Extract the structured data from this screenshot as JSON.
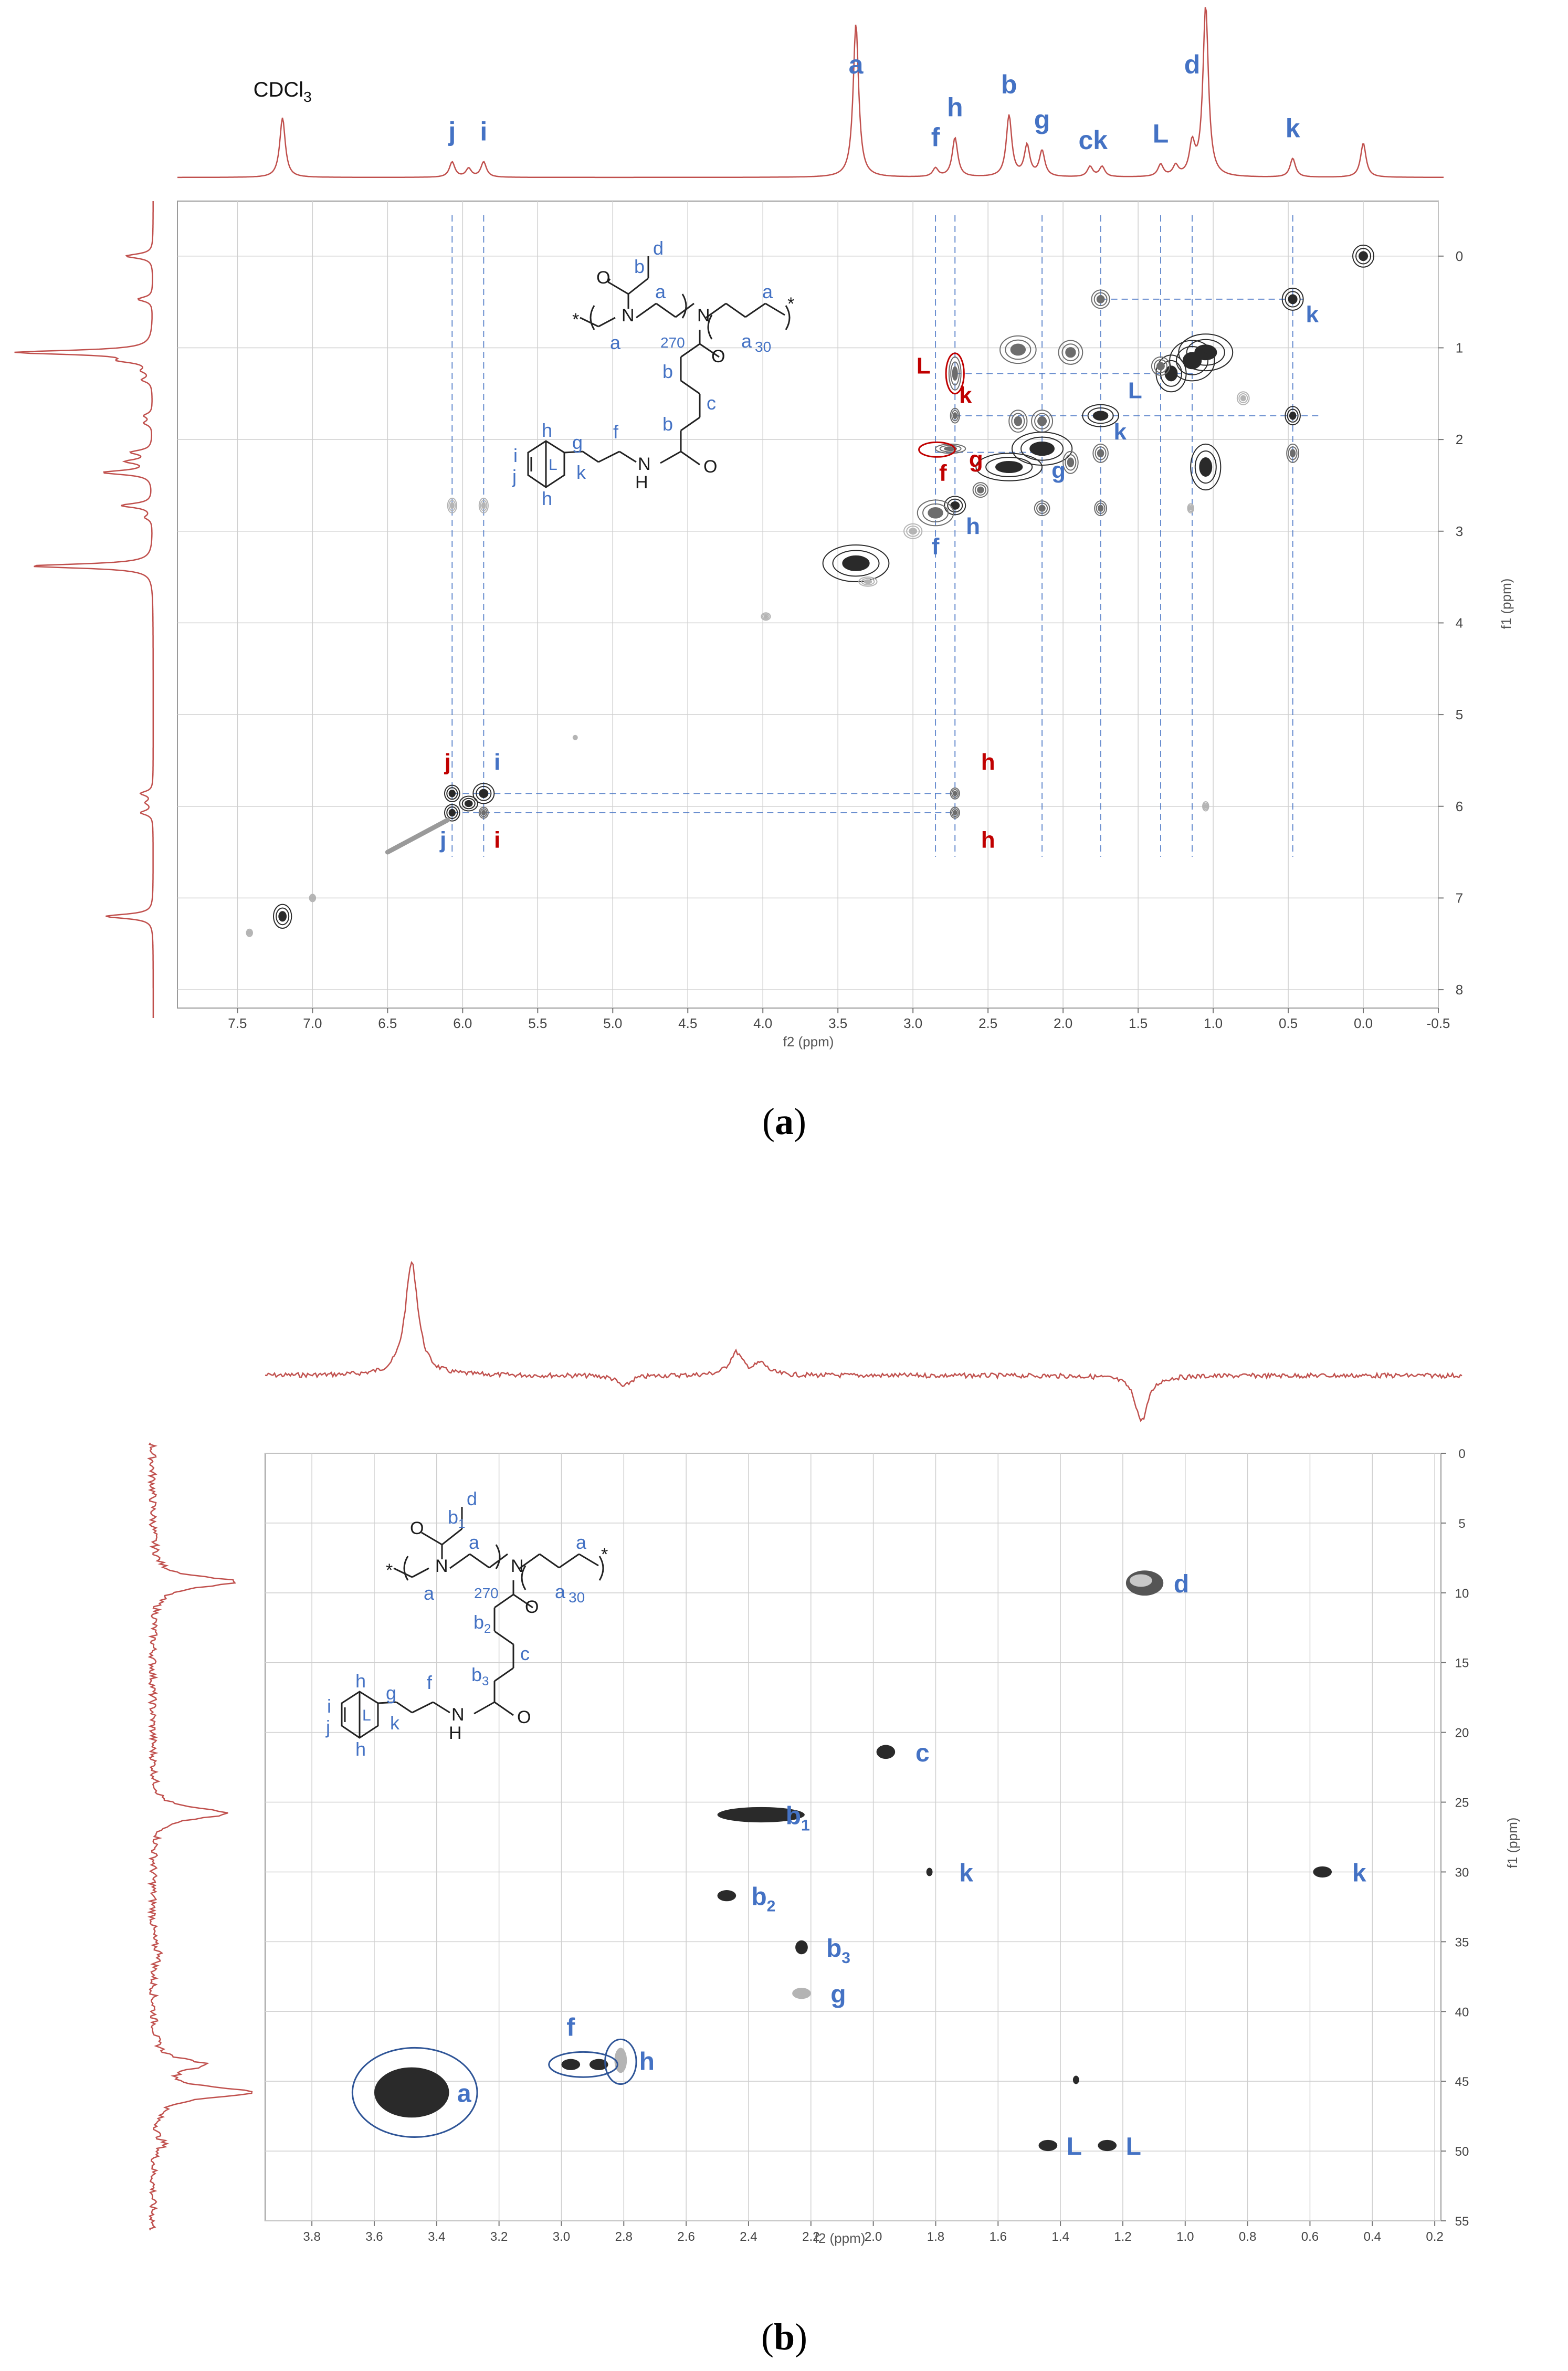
{
  "figure": {
    "caption_a": {
      "open": "(",
      "letter": "a",
      "close": ")"
    },
    "caption_b": {
      "open": "(",
      "letter": "b",
      "close": ")"
    }
  },
  "chart_data": [
    {
      "type": "scatter",
      "subtype": "2D NMR homonuclear correlation (COSY) with 1D 1H projections",
      "panel": "a",
      "xlabel": "f2 (ppm)",
      "ylabel": "f1 (ppm)",
      "xlim": [
        7.9,
        -0.5
      ],
      "ylim": [
        8.2,
        -0.6
      ],
      "x_ticks": [
        "7.5",
        "7.0",
        "6.5",
        "6.0",
        "5.5",
        "5.0",
        "4.5",
        "4.0",
        "3.5",
        "3.0",
        "2.5",
        "2.0",
        "1.5",
        "1.0",
        "0.5",
        "0.0",
        "-0.5"
      ],
      "y_ticks": [
        "0",
        "1",
        "2",
        "3",
        "4",
        "5",
        "6",
        "7",
        "8"
      ],
      "grid": true,
      "projection_peak_labels": [
        {
          "text": "CDCl",
          "sub": "3",
          "ppm": 7.2
        },
        {
          "text": "j",
          "ppm": 6.07
        },
        {
          "text": "i",
          "ppm": 5.86
        },
        {
          "text": "a",
          "ppm": 3.38
        },
        {
          "text": "f",
          "ppm": 2.85
        },
        {
          "text": "h",
          "ppm": 2.72
        },
        {
          "text": "b",
          "ppm": 2.36
        },
        {
          "text": "g",
          "ppm": 2.14
        },
        {
          "text": "ck",
          "ppm": 1.8
        },
        {
          "text": "L",
          "ppm": 1.35
        },
        {
          "text": "d",
          "ppm": 1.14
        },
        {
          "text": "k",
          "ppm": 0.47
        }
      ],
      "projection_peaks": [
        {
          "ppm": 7.2,
          "h": 0.35
        },
        {
          "ppm": 6.07,
          "h": 0.09
        },
        {
          "ppm": 5.96,
          "h": 0.05
        },
        {
          "ppm": 5.86,
          "h": 0.09
        },
        {
          "ppm": 3.38,
          "h": 0.9
        },
        {
          "ppm": 2.85,
          "h": 0.05
        },
        {
          "ppm": 2.72,
          "h": 0.23
        },
        {
          "ppm": 2.36,
          "h": 0.36
        },
        {
          "ppm": 2.24,
          "h": 0.18
        },
        {
          "ppm": 2.14,
          "h": 0.15
        },
        {
          "ppm": 1.82,
          "h": 0.06
        },
        {
          "ppm": 1.74,
          "h": 0.06
        },
        {
          "ppm": 1.35,
          "h": 0.07
        },
        {
          "ppm": 1.25,
          "h": 0.06
        },
        {
          "ppm": 1.14,
          "h": 0.18
        },
        {
          "ppm": 1.05,
          "h": 1.0
        },
        {
          "ppm": 0.47,
          "h": 0.11
        },
        {
          "ppm": 0.0,
          "h": 0.2
        }
      ],
      "guide_x": [
        6.07,
        5.86,
        2.85,
        2.72,
        2.14,
        1.75,
        1.35,
        1.14,
        0.47
      ],
      "guide_h": [
        {
          "y": 0.47,
          "x1": 1.75,
          "x2": 0.4
        },
        {
          "y": 1.28,
          "x1": 2.72,
          "x2": 1.14
        },
        {
          "y": 1.74,
          "x1": 2.72,
          "x2": 0.3
        },
        {
          "y": 2.14,
          "x1": 2.85,
          "x2": 2.14
        },
        {
          "y": 5.86,
          "x1": 6.07,
          "x2": 2.72
        },
        {
          "y": 6.07,
          "x1": 6.07,
          "x2": 2.72
        }
      ],
      "cross_peaks": [
        {
          "x": 0.0,
          "y": 0.0,
          "w": 0.07,
          "h": 0.12,
          "shade": "dark"
        },
        {
          "x": 1.75,
          "y": 0.47,
          "w": 0.06,
          "h": 0.1,
          "shade": "mid"
        },
        {
          "x": 0.47,
          "y": 0.47,
          "w": 0.07,
          "h": 0.12,
          "shade": "dark"
        },
        {
          "x": 2.3,
          "y": 1.02,
          "w": 0.12,
          "h": 0.15,
          "shade": "mid"
        },
        {
          "x": 1.95,
          "y": 1.05,
          "w": 0.08,
          "h": 0.13,
          "shade": "mid"
        },
        {
          "x": 1.05,
          "y": 1.05,
          "w": 0.18,
          "h": 0.2,
          "shade": "dark"
        },
        {
          "x": 1.14,
          "y": 1.14,
          "w": 0.15,
          "h": 0.22,
          "shade": "dark"
        },
        {
          "x": 1.28,
          "y": 1.28,
          "w": 0.1,
          "h": 0.2,
          "shade": "dark"
        },
        {
          "x": 1.35,
          "y": 1.2,
          "w": 0.06,
          "h": 0.1,
          "shade": "mid"
        },
        {
          "x": 0.8,
          "y": 1.55,
          "w": 0.04,
          "h": 0.07,
          "shade": "light"
        },
        {
          "x": 2.72,
          "y": 1.28,
          "w": 0.04,
          "h": 0.18,
          "shade": "mid"
        },
        {
          "x": 2.72,
          "y": 1.74,
          "w": 0.03,
          "h": 0.08,
          "shade": "mid"
        },
        {
          "x": 1.75,
          "y": 1.74,
          "w": 0.12,
          "h": 0.12,
          "shade": "dark"
        },
        {
          "x": 0.47,
          "y": 1.74,
          "w": 0.05,
          "h": 0.1,
          "shade": "dark"
        },
        {
          "x": 2.14,
          "y": 1.8,
          "w": 0.07,
          "h": 0.12,
          "shade": "mid"
        },
        {
          "x": 2.3,
          "y": 1.8,
          "w": 0.06,
          "h": 0.12,
          "shade": "mid"
        },
        {
          "x": 2.75,
          "y": 2.1,
          "w": 0.1,
          "h": 0.05,
          "shade": "mid"
        },
        {
          "x": 2.14,
          "y": 2.1,
          "w": 0.2,
          "h": 0.18,
          "shade": "dark"
        },
        {
          "x": 2.36,
          "y": 2.3,
          "w": 0.22,
          "h": 0.15,
          "shade": "dark"
        },
        {
          "x": 1.75,
          "y": 2.15,
          "w": 0.05,
          "h": 0.1,
          "shade": "mid"
        },
        {
          "x": 1.95,
          "y": 2.25,
          "w": 0.05,
          "h": 0.12,
          "shade": "mid"
        },
        {
          "x": 1.05,
          "y": 2.3,
          "w": 0.1,
          "h": 0.25,
          "shade": "dark"
        },
        {
          "x": 0.47,
          "y": 2.15,
          "w": 0.04,
          "h": 0.1,
          "shade": "mid"
        },
        {
          "x": 2.55,
          "y": 2.55,
          "w": 0.05,
          "h": 0.08,
          "shade": "mid"
        },
        {
          "x": 2.14,
          "y": 2.75,
          "w": 0.05,
          "h": 0.08,
          "shade": "mid"
        },
        {
          "x": 1.75,
          "y": 2.75,
          "w": 0.04,
          "h": 0.08,
          "shade": "mid"
        },
        {
          "x": 1.15,
          "y": 2.75,
          "w": 0.02,
          "h": 0.05,
          "shade": "light"
        },
        {
          "x": 2.72,
          "y": 2.72,
          "w": 0.07,
          "h": 0.1,
          "shade": "dark"
        },
        {
          "x": 2.85,
          "y": 2.8,
          "w": 0.12,
          "h": 0.14,
          "shade": "mid"
        },
        {
          "x": 3.0,
          "y": 3.0,
          "w": 0.06,
          "h": 0.08,
          "shade": "light"
        },
        {
          "x": 3.38,
          "y": 3.35,
          "w": 0.22,
          "h": 0.2,
          "shade": "dark"
        },
        {
          "x": 3.3,
          "y": 3.55,
          "w": 0.06,
          "h": 0.05,
          "shade": "light"
        },
        {
          "x": 3.98,
          "y": 3.93,
          "w": 0.03,
          "h": 0.04,
          "shade": "light"
        },
        {
          "x": 6.07,
          "y": 2.72,
          "w": 0.03,
          "h": 0.08,
          "shade": "light"
        },
        {
          "x": 5.86,
          "y": 2.72,
          "w": 0.03,
          "h": 0.08,
          "shade": "light"
        },
        {
          "x": 6.07,
          "y": 5.86,
          "w": 0.05,
          "h": 0.09,
          "shade": "dark"
        },
        {
          "x": 5.86,
          "y": 5.86,
          "w": 0.07,
          "h": 0.11,
          "shade": "dark"
        },
        {
          "x": 5.96,
          "y": 5.97,
          "w": 0.06,
          "h": 0.08,
          "shade": "dark"
        },
        {
          "x": 6.07,
          "y": 6.07,
          "w": 0.05,
          "h": 0.09,
          "shade": "dark"
        },
        {
          "x": 5.86,
          "y": 6.07,
          "w": 0.03,
          "h": 0.06,
          "shade": "mid"
        },
        {
          "x": 2.72,
          "y": 5.86,
          "w": 0.03,
          "h": 0.06,
          "shade": "mid"
        },
        {
          "x": 2.72,
          "y": 6.07,
          "w": 0.03,
          "h": 0.06,
          "shade": "mid"
        },
        {
          "x": 1.05,
          "y": 6.0,
          "w": 0.02,
          "h": 0.05,
          "shade": "light"
        },
        {
          "x": 5.25,
          "y": 5.25,
          "w": 0.01,
          "h": 0.02,
          "shade": "light"
        },
        {
          "x": 7.2,
          "y": 7.2,
          "w": 0.06,
          "h": 0.13,
          "shade": "dark"
        },
        {
          "x": 7.0,
          "y": 7.0,
          "w": 0.02,
          "h": 0.04,
          "shade": "light"
        },
        {
          "x": 7.42,
          "y": 7.38,
          "w": 0.02,
          "h": 0.04,
          "shade": "light"
        }
      ],
      "diagonal_streak": {
        "x1": 6.5,
        "y1": 6.5,
        "x2": 6.1,
        "y2": 6.15
      },
      "peak_labels": [
        {
          "text": "k",
          "x": 0.34,
          "y": 0.72,
          "color": "blue"
        },
        {
          "text": "L",
          "x": 1.52,
          "y": 1.55,
          "color": "blue"
        },
        {
          "text": "k",
          "x": 1.62,
          "y": 2.0,
          "color": "blue"
        },
        {
          "text": "g",
          "x": 2.03,
          "y": 2.42,
          "color": "blue"
        },
        {
          "text": "h",
          "x": 2.6,
          "y": 3.03,
          "color": "blue"
        },
        {
          "text": "f",
          "x": 2.85,
          "y": 3.25,
          "color": "blue"
        },
        {
          "text": "L",
          "x": 2.93,
          "y": 1.28,
          "color": "red"
        },
        {
          "text": "k",
          "x": 2.65,
          "y": 1.6,
          "color": "red"
        },
        {
          "text": "f",
          "x": 2.8,
          "y": 2.45,
          "color": "red"
        },
        {
          "text": "g",
          "x": 2.58,
          "y": 2.3,
          "color": "red"
        },
        {
          "text": "j",
          "x": 6.1,
          "y": 5.6,
          "color": "red"
        },
        {
          "text": "i",
          "x": 5.77,
          "y": 5.6,
          "color": "blue"
        },
        {
          "text": "j",
          "x": 6.13,
          "y": 6.45,
          "color": "blue"
        },
        {
          "text": "i",
          "x": 5.77,
          "y": 6.45,
          "color": "red"
        },
        {
          "text": "h",
          "x": 2.5,
          "y": 5.6,
          "color": "red"
        },
        {
          "text": "h",
          "x": 2.5,
          "y": 6.45,
          "color": "red"
        }
      ],
      "red_circles": [
        {
          "x": 2.72,
          "y": 1.28,
          "rx": 0.06,
          "ry": 0.22
        },
        {
          "x": 2.84,
          "y": 2.11,
          "rx": 0.12,
          "ry": 0.08
        }
      ],
      "structure": {
        "labels": [
          "d",
          "b",
          "a",
          "a",
          "a",
          "a",
          "270",
          "30",
          "b",
          "c",
          "b",
          "f",
          "h",
          "g",
          "i",
          "L",
          "j",
          "k",
          "h",
          "NH",
          "N",
          "N",
          "O",
          "O",
          "O",
          "*",
          "*"
        ]
      }
    },
    {
      "type": "scatter",
      "subtype": "2D NMR heteronuclear correlation (HSQC) with 1D projections",
      "panel": "b",
      "xlabel": "f2 (ppm)",
      "ylabel": "f1 (ppm)",
      "xlim": [
        3.95,
        0.18
      ],
      "ylim": [
        0,
        55
      ],
      "x_ticks": [
        "3.8",
        "3.6",
        "3.4",
        "3.2",
        "3.0",
        "2.8",
        "2.6",
        "2.4",
        "2.2",
        "2.0",
        "1.8",
        "1.6",
        "1.4",
        "1.2",
        "1.0",
        "0.8",
        "0.6",
        "0.4",
        "0.2"
      ],
      "y_ticks": [
        "0",
        "5",
        "10",
        "15",
        "20",
        "25",
        "30",
        "35",
        "40",
        "45",
        "50",
        "55"
      ],
      "grid": true,
      "top_projection_peaks": [
        {
          "ppm": 3.48,
          "h": 1.0
        },
        {
          "ppm": 2.44,
          "h": 0.2
        },
        {
          "ppm": 2.36,
          "h": 0.1
        },
        {
          "ppm": 2.8,
          "h": -0.1
        },
        {
          "ppm": 1.14,
          "h": -0.4
        }
      ],
      "left_projection_peaks": [
        {
          "ppm": 9.2,
          "h": 0.85
        },
        {
          "ppm": 25.8,
          "h": 0.75
        },
        {
          "ppm": 43.8,
          "h": 0.5
        },
        {
          "ppm": 45.8,
          "h": 1.0
        },
        {
          "ppm": 36.0,
          "h": 0.08
        },
        {
          "ppm": 49.5,
          "h": 0.1
        }
      ],
      "cross_peaks": [
        {
          "x": 1.13,
          "y": 9.3,
          "w": 0.06,
          "h": 0.9,
          "shade": "mixed",
          "label": "d"
        },
        {
          "x": 1.96,
          "y": 21.4,
          "w": 0.03,
          "h": 0.5,
          "shade": "dark",
          "label": "c"
        },
        {
          "x": 2.36,
          "y": 25.9,
          "w": 0.14,
          "h": 0.55,
          "shade": "dark",
          "label": "b",
          "label_sub": "1"
        },
        {
          "x": 1.82,
          "y": 30.0,
          "w": 0.01,
          "h": 0.3,
          "shade": "dark",
          "label": "k"
        },
        {
          "x": 0.56,
          "y": 30.0,
          "w": 0.03,
          "h": 0.4,
          "shade": "dark",
          "label": "k"
        },
        {
          "x": 2.47,
          "y": 31.7,
          "w": 0.03,
          "h": 0.4,
          "shade": "dark",
          "label": "b",
          "label_sub": "2"
        },
        {
          "x": 2.23,
          "y": 35.4,
          "w": 0.02,
          "h": 0.5,
          "shade": "dark",
          "label": "b",
          "label_sub": "3"
        },
        {
          "x": 2.23,
          "y": 38.7,
          "w": 0.03,
          "h": 0.4,
          "shade": "light",
          "label": "g"
        },
        {
          "x": 2.97,
          "y": 43.8,
          "w": 0.03,
          "h": 0.4,
          "shade": "dark",
          "label": "f"
        },
        {
          "x": 2.88,
          "y": 43.8,
          "w": 0.03,
          "h": 0.4,
          "shade": "dark"
        },
        {
          "x": 2.81,
          "y": 43.5,
          "w": 0.02,
          "h": 0.9,
          "shade": "light",
          "label": "h"
        },
        {
          "x": 1.35,
          "y": 44.9,
          "w": 0.01,
          "h": 0.3,
          "shade": "dark"
        },
        {
          "x": 3.48,
          "y": 45.8,
          "w": 0.12,
          "h": 1.8,
          "shade": "dark",
          "label": "a"
        },
        {
          "x": 1.44,
          "y": 49.6,
          "w": 0.03,
          "h": 0.4,
          "shade": "dark",
          "label": "L"
        },
        {
          "x": 1.25,
          "y": 49.6,
          "w": 0.03,
          "h": 0.4,
          "shade": "dark",
          "label": "L"
        }
      ],
      "blue_circles": [
        {
          "x": 3.47,
          "y": 45.8,
          "rx": 0.2,
          "ry": 3.2
        },
        {
          "x": 2.93,
          "y": 43.8,
          "rx": 0.11,
          "ry": 0.9
        },
        {
          "x": 2.81,
          "y": 43.6,
          "rx": 0.05,
          "ry": 1.6
        }
      ],
      "structure": {
        "labels": [
          "d",
          "b1",
          "a",
          "a",
          "a",
          "a",
          "270",
          "30",
          "b2",
          "c",
          "b3",
          "f",
          "h",
          "g",
          "i",
          "L",
          "j",
          "k",
          "h",
          "NH",
          "N",
          "N",
          "O",
          "O",
          "O",
          "*",
          "*"
        ]
      }
    }
  ]
}
